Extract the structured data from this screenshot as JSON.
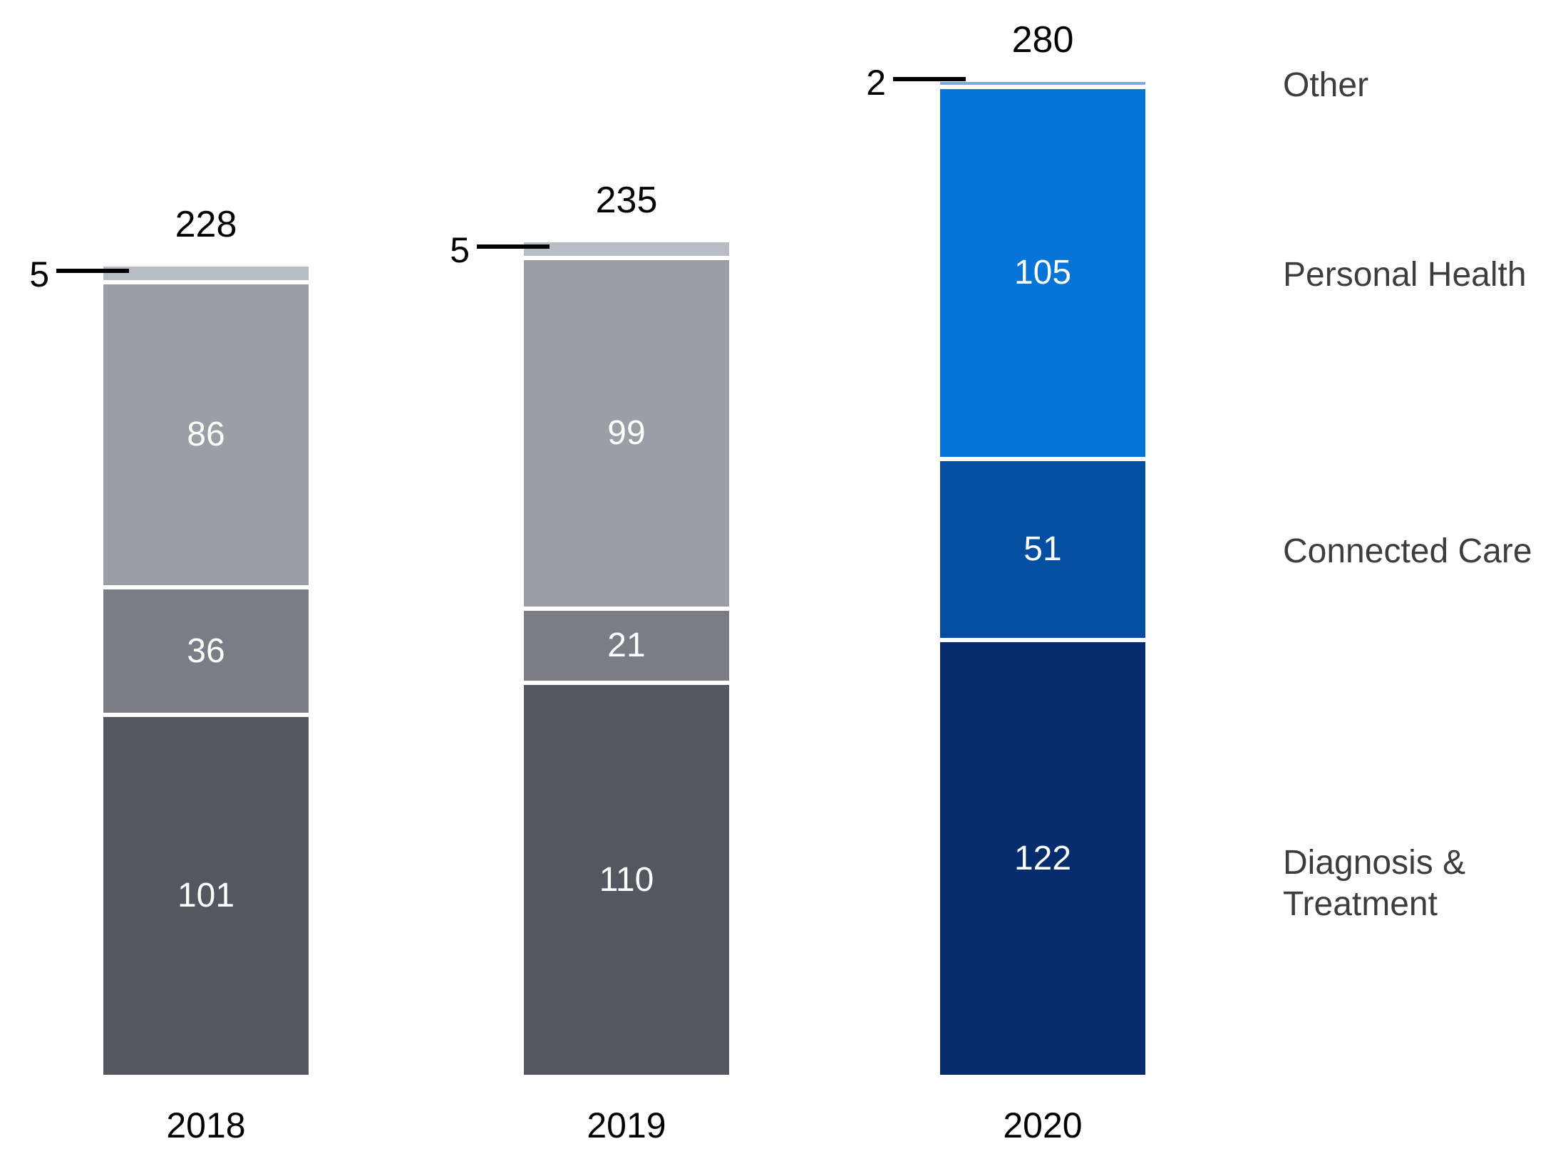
{
  "chart_data": {
    "type": "bar",
    "variant": "stacked-column",
    "title": "",
    "xlabel": "",
    "ylabel": "",
    "grid": false,
    "axes_hidden": true,
    "legend_position": "right",
    "categories": [
      "2018",
      "2019",
      "2020"
    ],
    "series": [
      {
        "name": "Diagnosis & Treatment",
        "values": [
          101,
          110,
          122
        ]
      },
      {
        "name": "Connected Care",
        "values": [
          36,
          21,
          51
        ]
      },
      {
        "name": "Personal Health",
        "values": [
          86,
          99,
          105
        ]
      },
      {
        "name": "Other",
        "values": [
          5,
          5,
          2
        ]
      }
    ],
    "totals": [
      228,
      235,
      280
    ],
    "callout_values": [
      "5",
      "5",
      "2"
    ],
    "legend_labels": [
      "Other",
      "Personal Health",
      "Connected Care",
      "Diagnosis & Treatment"
    ],
    "colors": {
      "2018": {
        "Other": "#b8bcc4",
        "Personal Health": "#9b9ea6",
        "Connected Care": "#7a7d86",
        "Diagnosis & Treatment": "#54575f"
      },
      "2019": {
        "Other": "#b8bcc4",
        "Personal Health": "#9b9ea6",
        "Connected Care": "#7a7d86",
        "Diagnosis & Treatment": "#54575f"
      },
      "2020": {
        "Other": "#7fa9e0",
        "Personal Health": "#0775d8",
        "Connected Care": "#044fa2",
        "Diagnosis & Treatment": "#082d6e"
      }
    },
    "value_label_color": "#ffffff",
    "total_label_color": "#000000",
    "legend_text_color": "#3d3d3d",
    "separator_color": "#ffffff"
  }
}
